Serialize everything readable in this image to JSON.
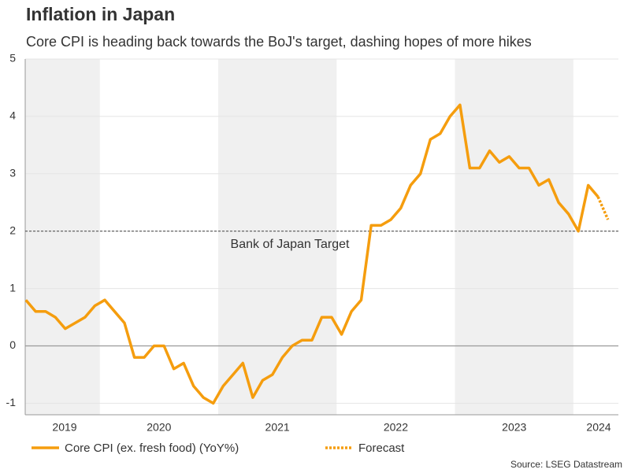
{
  "chart_data": {
    "type": "line",
    "title": "Inflation in Japan",
    "subtitle": "Core CPI is heading back towards the BoJ's target, dashing hopes of more hikes",
    "source": "Source: LSEG Datastream",
    "series": [
      {
        "name": "Core CPI (ex. fresh food) (YoY%)",
        "color": "#f59d0e",
        "dashed": false,
        "x": [
          2019.375,
          2019.458,
          2019.542,
          2019.625,
          2019.708,
          2019.792,
          2019.875,
          2019.958,
          2020.042,
          2020.125,
          2020.208,
          2020.292,
          2020.375,
          2020.458,
          2020.542,
          2020.625,
          2020.708,
          2020.792,
          2020.875,
          2020.958,
          2021.042,
          2021.125,
          2021.208,
          2021.292,
          2021.375,
          2021.458,
          2021.542,
          2021.625,
          2021.708,
          2021.792,
          2021.875,
          2021.958,
          2022.042,
          2022.125,
          2022.208,
          2022.292,
          2022.375,
          2022.458,
          2022.542,
          2022.625,
          2022.708,
          2022.792,
          2022.875,
          2022.958,
          2023.042,
          2023.125,
          2023.208,
          2023.292,
          2023.375,
          2023.458,
          2023.542,
          2023.625,
          2023.708,
          2023.792,
          2023.875,
          2023.958,
          2024.042,
          2024.125,
          2024.208
        ],
        "values": [
          0.8,
          0.6,
          0.6,
          0.5,
          0.3,
          0.4,
          0.5,
          0.7,
          0.8,
          0.6,
          0.4,
          -0.2,
          -0.2,
          0.0,
          0.0,
          -0.4,
          -0.3,
          -0.7,
          -0.9,
          -1.0,
          -0.7,
          -0.5,
          -0.3,
          -0.9,
          -0.6,
          -0.5,
          -0.2,
          0.0,
          0.1,
          0.1,
          0.5,
          0.5,
          0.2,
          0.6,
          0.8,
          2.1,
          2.1,
          2.2,
          2.4,
          2.8,
          3.0,
          3.6,
          3.7,
          4.0,
          4.2,
          3.1,
          3.1,
          3.4,
          3.2,
          3.3,
          3.1,
          3.1,
          2.8,
          2.9,
          2.5,
          2.3,
          2.0,
          2.8,
          2.6
        ]
      },
      {
        "name": "Forecast",
        "color": "#f59d0e",
        "dashed": true,
        "x": [
          2024.208,
          2024.292
        ],
        "values": [
          2.6,
          2.2
        ]
      }
    ],
    "target": {
      "value": 2,
      "label": "Bank of Japan Target"
    },
    "xlim": [
      2019.37,
      2024.38
    ],
    "xticks": [
      {
        "value": 2019.5,
        "label": "2019"
      },
      {
        "value": 2020.5,
        "label": "2020"
      },
      {
        "value": 2021.5,
        "label": "2021"
      },
      {
        "value": 2022.5,
        "label": "2022"
      },
      {
        "value": 2023.5,
        "label": "2023"
      },
      {
        "value": 2024.5,
        "label": "2024"
      }
    ],
    "ylim": [
      -1.2,
      5
    ],
    "yticks": [
      -1,
      0,
      1,
      2,
      3,
      4,
      5
    ],
    "band_color": "#f0f0f0",
    "grid": true
  }
}
